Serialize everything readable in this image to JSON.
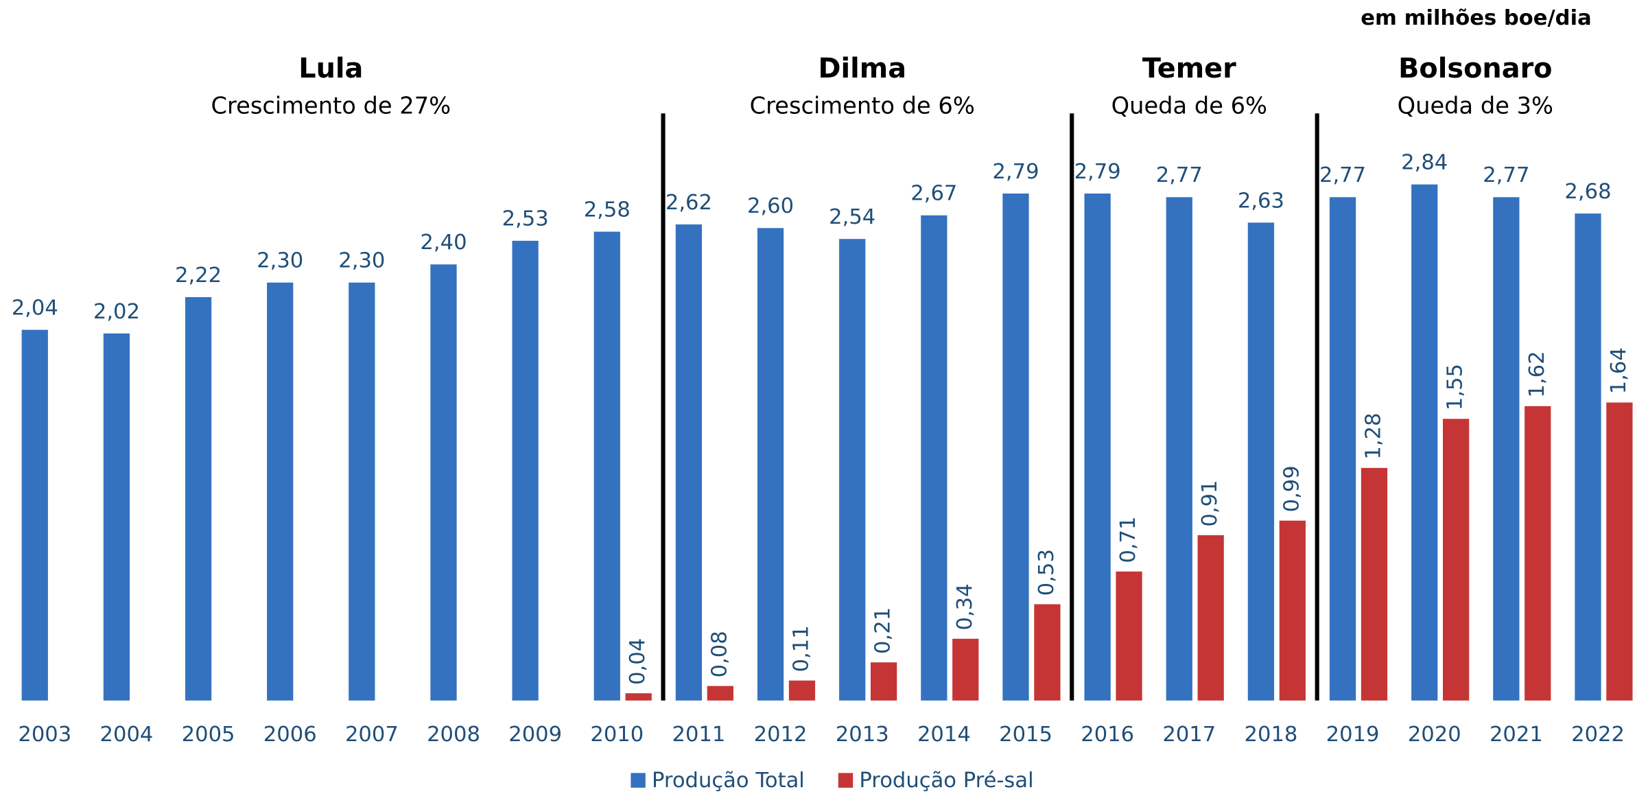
{
  "chart_data": {
    "type": "bar",
    "unit_note": "em milhões boe/dia",
    "categories": [
      "2003",
      "2004",
      "2005",
      "2006",
      "2007",
      "2008",
      "2009",
      "2010",
      "2011",
      "2012",
      "2013",
      "2014",
      "2015",
      "2016",
      "2017",
      "2018",
      "2019",
      "2020",
      "2021",
      "2022"
    ],
    "series": [
      {
        "name": "Produção Total",
        "color": "#3472c0",
        "values": [
          2.04,
          2.02,
          2.22,
          2.3,
          2.3,
          2.4,
          2.53,
          2.58,
          2.62,
          2.6,
          2.54,
          2.67,
          2.79,
          2.79,
          2.77,
          2.63,
          2.77,
          2.84,
          2.77,
          2.68
        ],
        "value_labels": [
          "2,04",
          "2,02",
          "2,22",
          "2,30",
          "2,30",
          "2,40",
          "2,53",
          "2,58",
          "2,62",
          "2,60",
          "2,54",
          "2,67",
          "2,79",
          "2,79",
          "2,77",
          "2,63",
          "2,77",
          "2,84",
          "2,77",
          "2,68"
        ]
      },
      {
        "name": "Produção Pré-sal",
        "color": "#c63535",
        "values": [
          null,
          null,
          null,
          null,
          null,
          null,
          null,
          0.04,
          0.08,
          0.11,
          0.21,
          0.34,
          0.53,
          0.71,
          0.91,
          0.99,
          1.28,
          1.55,
          1.62,
          1.64
        ],
        "value_labels": [
          null,
          null,
          null,
          null,
          null,
          null,
          null,
          "0,04",
          "0,08",
          "0,11",
          "0,21",
          "0,34",
          "0,53",
          "0,71",
          "0,91",
          "0,99",
          "1,28",
          "1,55",
          "1,62",
          "1,64"
        ]
      }
    ],
    "periods": [
      {
        "name": "Lula",
        "note": "Crescimento de 27%",
        "from": "2003",
        "to": "2010"
      },
      {
        "name": "Dilma",
        "note": "Crescimento de 6%",
        "from": "2011",
        "to": "2015"
      },
      {
        "name": "Temer",
        "note": "Queda de 6%",
        "from": "2016",
        "to": "2018"
      },
      {
        "name": "Bolsonaro",
        "note": "Queda de 3%",
        "from": "2019",
        "to": "2022"
      }
    ],
    "ylim": [
      0,
      3.855
    ],
    "legend": "bottom"
  }
}
